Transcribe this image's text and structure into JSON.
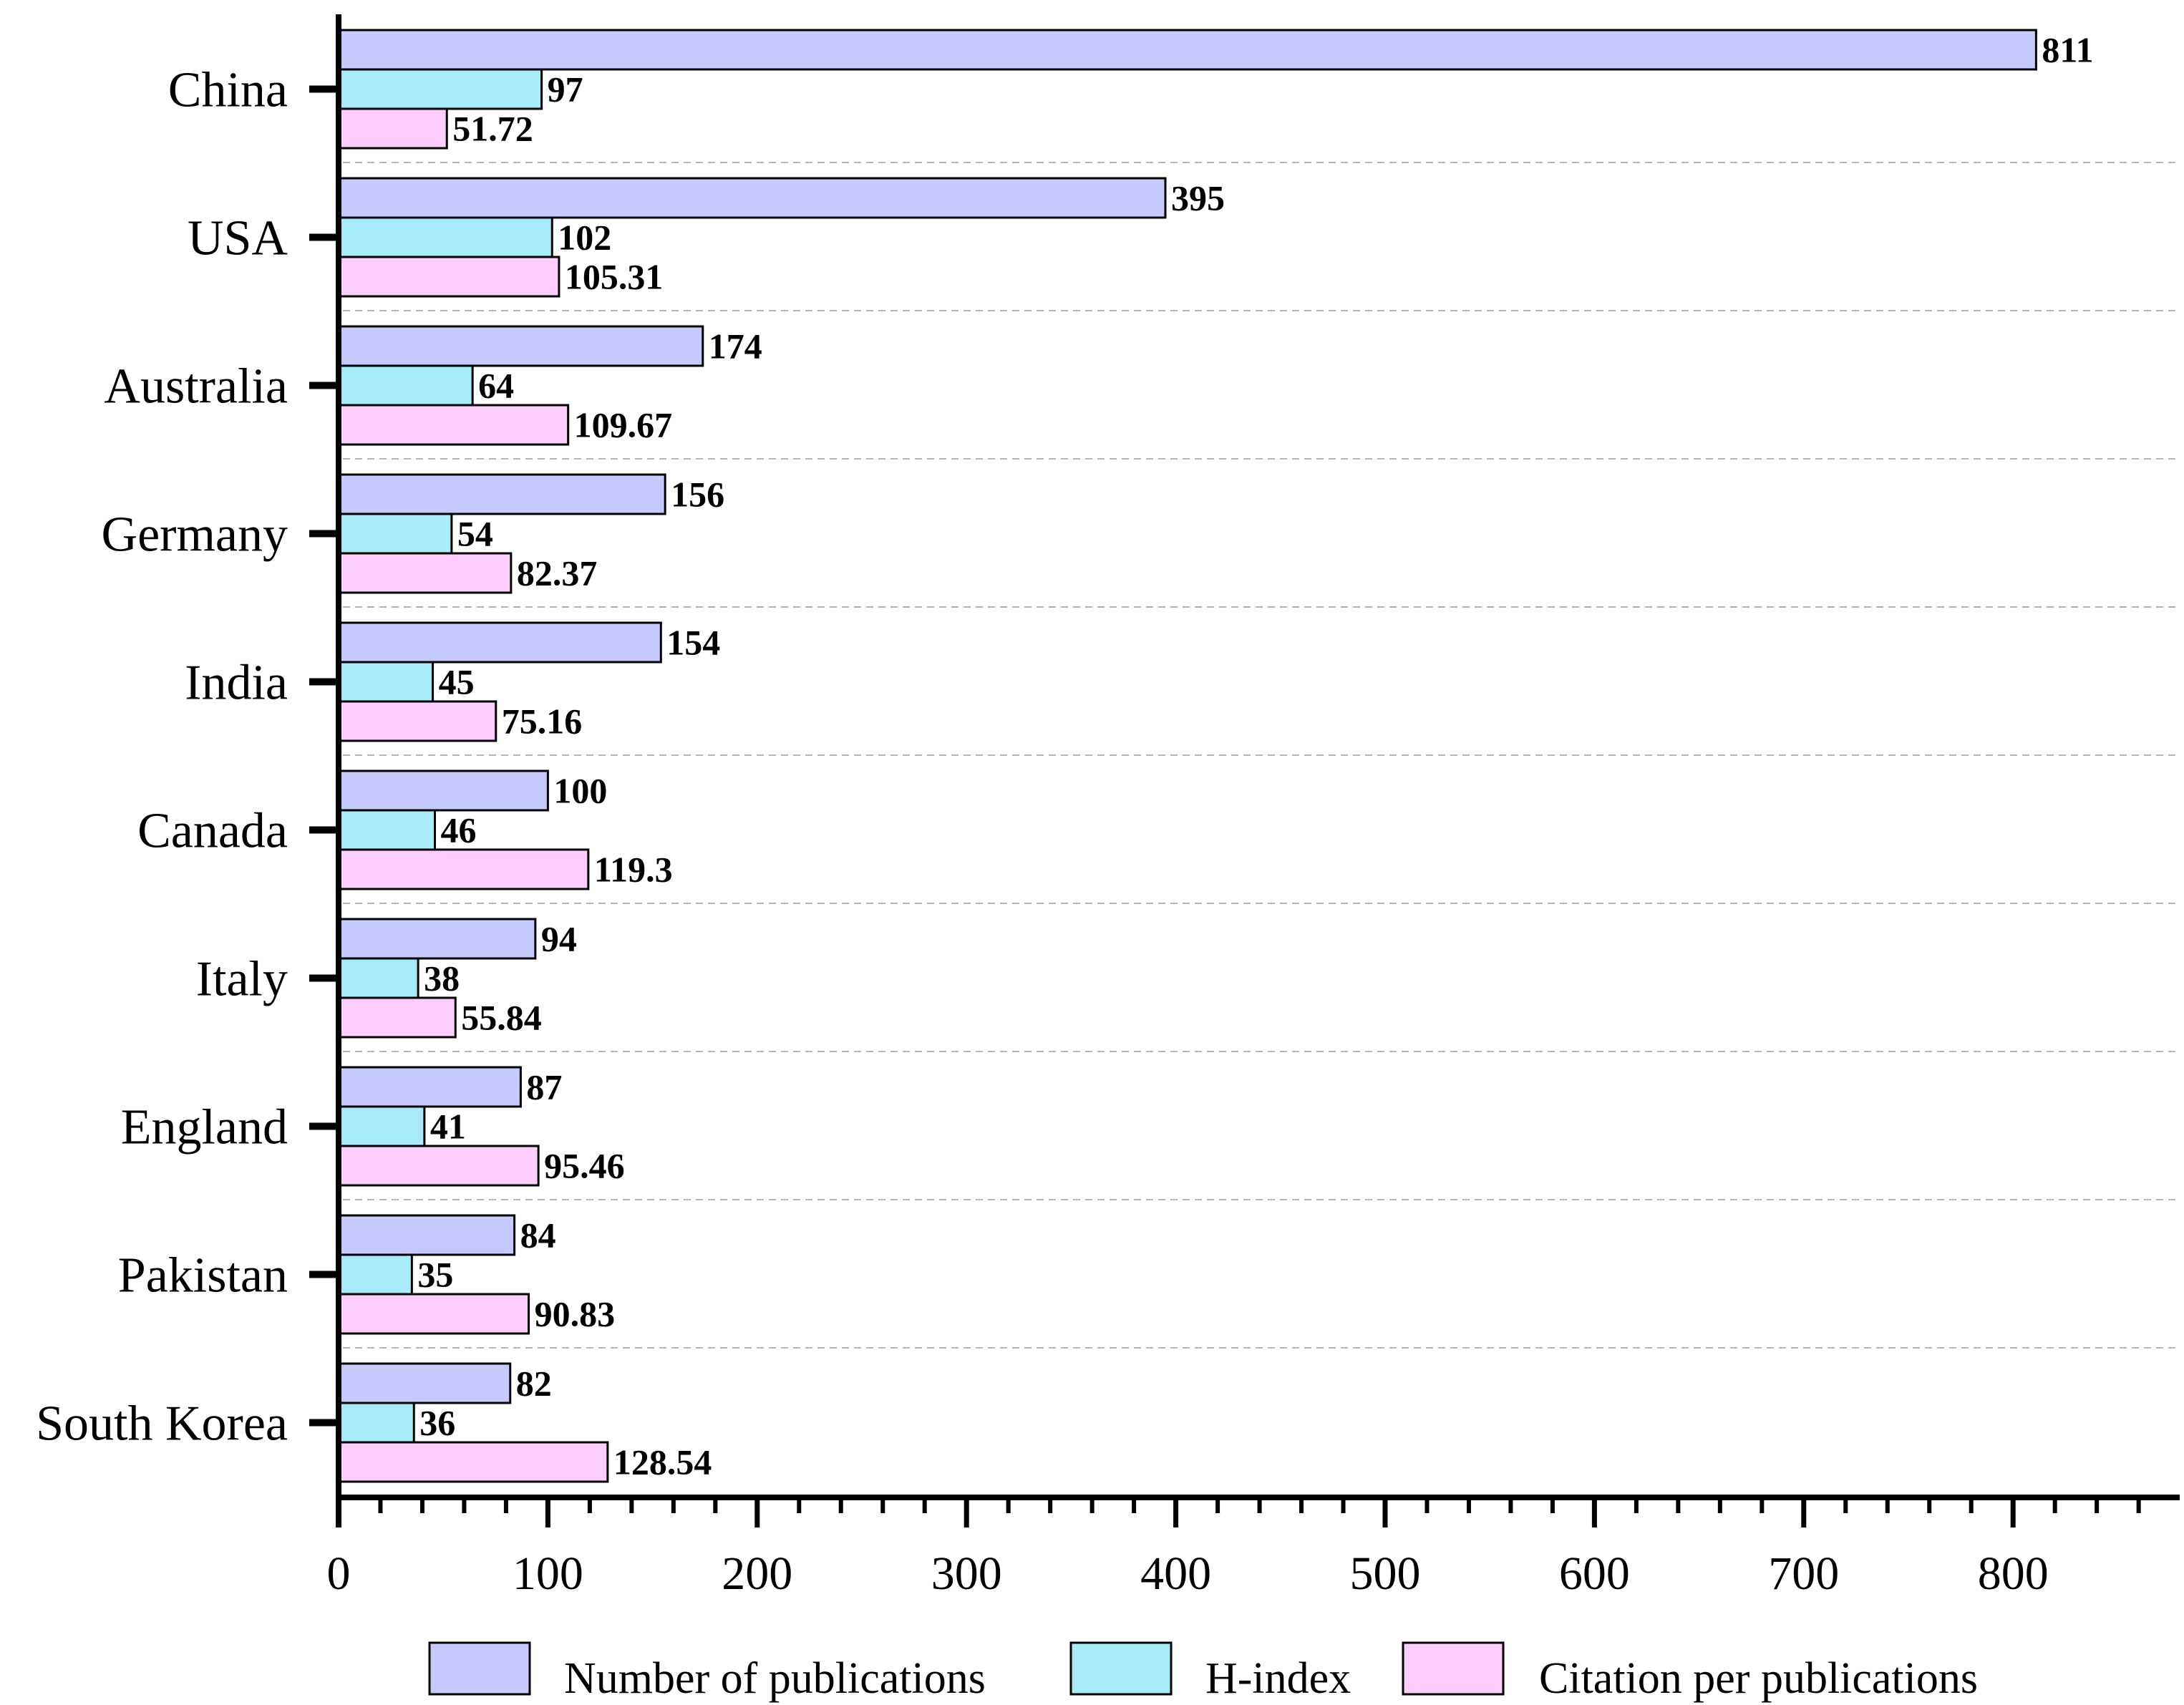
{
  "chart_data": {
    "type": "bar",
    "orientation": "horizontal",
    "title": "",
    "xlabel": "",
    "ylabel": "",
    "categories": [
      "China",
      "USA",
      "Australia",
      "Germany",
      "India",
      "Canada",
      "Italy",
      "England",
      "Pakistan",
      "South Korea"
    ],
    "series": [
      {
        "name": "Number of publications",
        "color": "#c5c9fd",
        "values": [
          811,
          395,
          174,
          156,
          154,
          100,
          94,
          87,
          84,
          82
        ],
        "labels": [
          "811",
          "395",
          "174",
          "156",
          "154",
          "100",
          "94",
          "87",
          "84",
          "82"
        ]
      },
      {
        "name": "H-index",
        "color": "#a8ecfa",
        "values": [
          97,
          102,
          64,
          54,
          45,
          46,
          38,
          41,
          35,
          36
        ],
        "labels": [
          "97",
          "102",
          "64",
          "54",
          "45",
          "46",
          "38",
          "41",
          "35",
          "36"
        ]
      },
      {
        "name": "Citation per publications",
        "color": "#fdcdfd",
        "values": [
          51.72,
          105.31,
          109.67,
          82.37,
          75.16,
          119.3,
          55.84,
          95.46,
          90.83,
          128.54
        ],
        "labels": [
          "51.72",
          "105.31",
          "109.67",
          "82.37",
          "75.16",
          "119.3",
          "55.84",
          "95.46",
          "90.83",
          "128.54"
        ]
      }
    ],
    "xlim": [
      0,
      880
    ],
    "xticks": [
      0,
      100,
      200,
      300,
      400,
      500,
      600,
      700,
      800
    ],
    "xtick_labels": [
      "0",
      "100",
      "200",
      "300",
      "400",
      "500",
      "600",
      "700",
      "800"
    ],
    "minor_tick_step": 20,
    "grid": "dashed horizontal separators between categories",
    "legend_position": "bottom"
  }
}
